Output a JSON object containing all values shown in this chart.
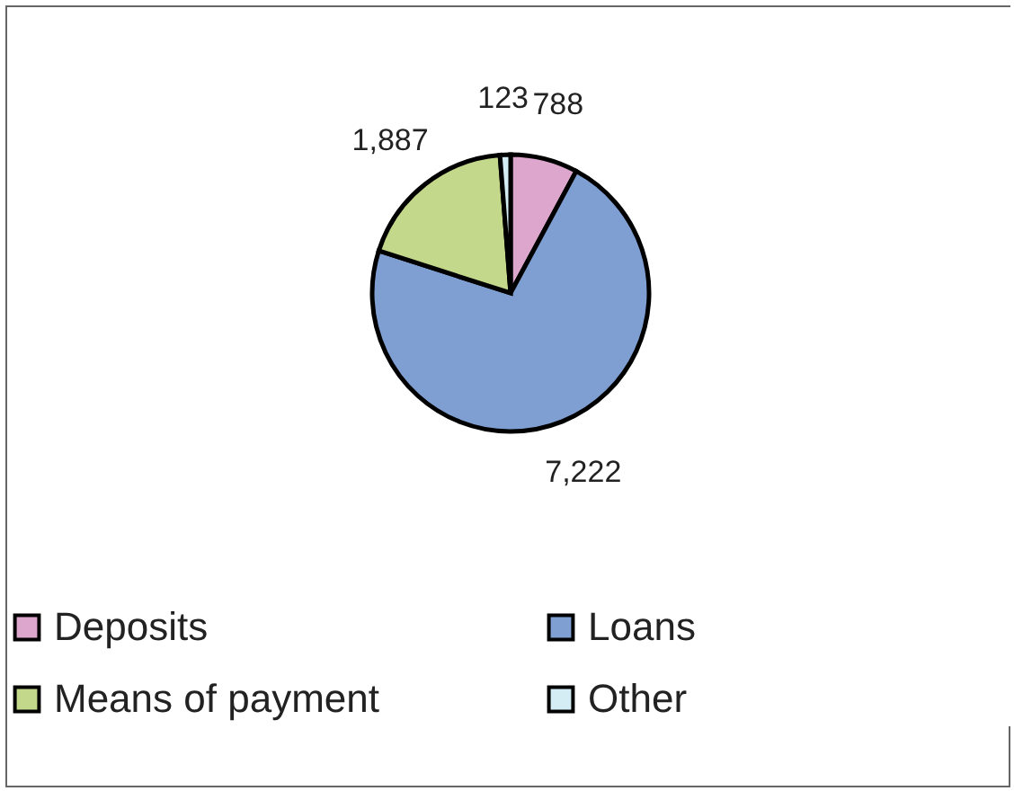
{
  "chart_data": {
    "type": "pie",
    "categories": [
      "Deposits",
      "Loans",
      "Means of payment",
      "Other"
    ],
    "values": [
      788,
      7222,
      1887,
      123
    ],
    "colors": [
      "#dda6cd",
      "#7f9fd3",
      "#c4d88c",
      "#d4ecf3"
    ],
    "value_labels": [
      "788",
      "7,222",
      "1,887",
      "123"
    ],
    "legend": "bottom"
  }
}
